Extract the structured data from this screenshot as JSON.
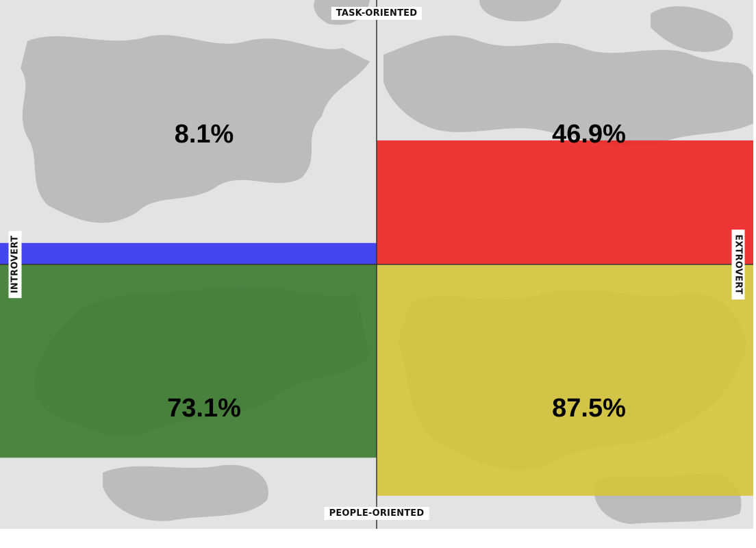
{
  "chart_data": {
    "type": "bar",
    "description_axes": {
      "top": "TASK-ORIENTED",
      "bottom": "PEOPLE-ORIENTED",
      "left": "INTROVERT",
      "right": "EXTROVERT"
    },
    "quadrants": [
      {
        "id": "task-introvert",
        "label": "8.1%",
        "value": 8.1,
        "color": "#3333ee",
        "direction": "up",
        "side": "left"
      },
      {
        "id": "task-extrovert",
        "label": "46.9%",
        "value": 46.9,
        "color": "#ee2222",
        "direction": "up",
        "side": "right"
      },
      {
        "id": "people-introvert",
        "label": "73.1%",
        "value": 73.1,
        "color": "#3a7a2e",
        "direction": "down",
        "side": "left"
      },
      {
        "id": "people-extrovert",
        "label": "87.5%",
        "value": 87.5,
        "color": "#d4c43a",
        "direction": "down",
        "side": "right"
      }
    ],
    "ylim": [
      0,
      100
    ]
  }
}
